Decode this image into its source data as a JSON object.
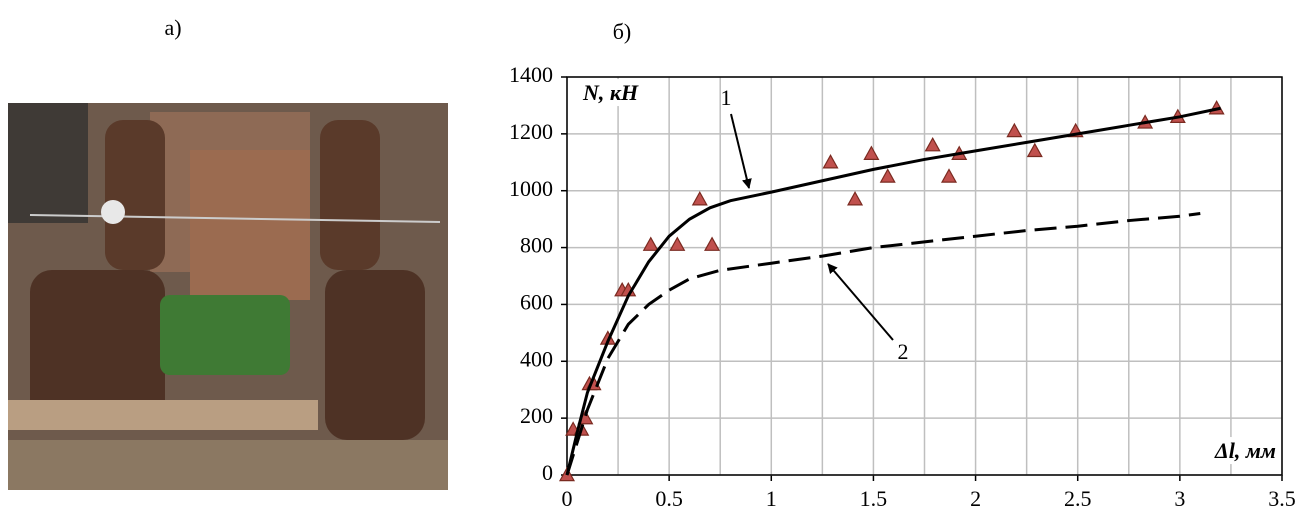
{
  "panel_labels": [
    "а)",
    "б)"
  ],
  "chart_data": {
    "type": "line",
    "ylabel": "N, кН",
    "xlabel": "Δl, мм",
    "annotations": [
      "1",
      "2"
    ],
    "xlim": [
      0,
      3.5
    ],
    "xticks": [
      0,
      0.5,
      1,
      1.5,
      2,
      2.5,
      3,
      3.5
    ],
    "xminorticks": [
      0.25,
      0.75,
      1.25,
      1.75,
      2.25,
      2.75,
      3.25
    ],
    "ylim": [
      0,
      1400
    ],
    "yticks": [
      0,
      200,
      400,
      600,
      800,
      1000,
      1200,
      1400
    ],
    "grid": true,
    "series": [
      {
        "type": "scatter",
        "color": "#c0504d",
        "x": [
          0,
          0.03,
          0.07,
          0.09,
          0.11,
          0.13,
          0.2,
          0.27,
          0.3,
          0.41,
          0.54,
          0.71,
          0.65,
          1.29,
          1.41,
          1.49,
          1.57,
          1.79,
          1.87,
          1.92,
          2.19,
          2.29,
          2.49,
          2.83,
          2.99,
          3.18
        ],
        "values": [
          0,
          160,
          160,
          200,
          320,
          320,
          480,
          650,
          650,
          810,
          810,
          810,
          970,
          1100,
          970,
          1130,
          1050,
          1160,
          1050,
          1130,
          1210,
          1140,
          1210,
          1240,
          1260,
          1290
        ]
      },
      {
        "type": "line",
        "color": "#000000",
        "dash": false,
        "x": [
          0,
          0.05,
          0.1,
          0.2,
          0.3,
          0.4,
          0.5,
          0.6,
          0.7,
          0.8,
          1.0,
          1.25,
          1.5,
          1.75,
          2,
          2.25,
          2.5,
          2.75,
          3,
          3.2
        ],
        "values": [
          0,
          150,
          290,
          470,
          630,
          750,
          840,
          900,
          940,
          965,
          995,
          1035,
          1075,
          1110,
          1140,
          1170,
          1200,
          1230,
          1260,
          1290
        ]
      },
      {
        "type": "line",
        "color": "#000000",
        "dash": true,
        "x": [
          0,
          0.1,
          0.2,
          0.3,
          0.4,
          0.5,
          0.6,
          0.75,
          1,
          1.25,
          1.5,
          1.75,
          2,
          2.25,
          2.5,
          2.75,
          3,
          3.1
        ],
        "values": [
          0,
          230,
          410,
          530,
          600,
          650,
          690,
          720,
          745,
          770,
          800,
          820,
          840,
          860,
          875,
          895,
          910,
          920
        ]
      }
    ]
  }
}
